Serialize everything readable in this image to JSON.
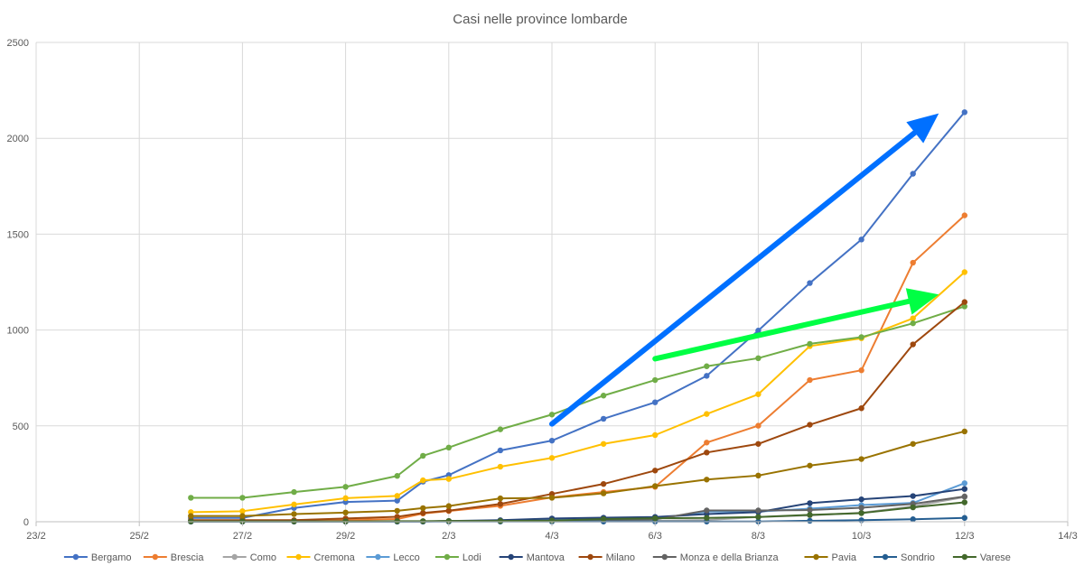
{
  "chart_data": {
    "type": "line",
    "title": "Casi nelle province lombarde",
    "xlabel": "",
    "ylabel": "",
    "xlim": [
      "23/2",
      "14/3"
    ],
    "ylim": [
      0,
      2500
    ],
    "x_ticks": [
      "23/2",
      "25/2",
      "27/2",
      "29/2",
      "2/3",
      "4/3",
      "6/3",
      "8/3",
      "10/3",
      "12/3",
      "14/3"
    ],
    "y_ticks": [
      0,
      500,
      1000,
      1500,
      2000,
      2500
    ],
    "grid": true,
    "legend_position": "bottom",
    "x": [
      "26/2",
      "27/2",
      "28/2",
      "29/2",
      "1/3",
      "2/3",
      "3/3",
      "4/3",
      "5/3",
      "6/3",
      "7/3",
      "8/3",
      "9/3",
      "10/3",
      "11/3",
      "12/3"
    ],
    "x_partial_start": {
      "Brescia": "26/2",
      "Como": "26/2"
    },
    "series": [
      {
        "name": "Bergamo",
        "color": "#4472c4",
        "points": [
          [
            "26/2",
            20
          ],
          [
            "27/2",
            20
          ],
          [
            "28/2",
            72
          ],
          [
            "29/2",
            103
          ],
          [
            "1/3",
            110
          ],
          [
            "1/3T",
            209
          ],
          [
            "2/3",
            243
          ],
          [
            "3/3",
            372
          ],
          [
            "4/3",
            423
          ],
          [
            "5/3",
            537
          ],
          [
            "6/3",
            623
          ],
          [
            "7/3",
            761
          ],
          [
            "8/3",
            997
          ],
          [
            "9/3",
            1245
          ],
          [
            "10/3",
            1472
          ],
          [
            "11/3",
            1815
          ],
          [
            "12/3",
            2136
          ]
        ]
      },
      {
        "name": "Brescia",
        "color": "#ed7d31",
        "points": [
          [
            "26/2",
            2
          ],
          [
            "27/2",
            2
          ],
          [
            "28/2",
            2
          ],
          [
            "29/2",
            10
          ],
          [
            "1/3",
            14
          ],
          [
            "1/3T",
            43
          ],
          [
            "2/3",
            56
          ],
          [
            "3/3",
            83
          ],
          [
            "4/3",
            127
          ],
          [
            "5/3",
            155
          ],
          [
            "6/3",
            182
          ],
          [
            "7/3",
            413
          ],
          [
            "8/3",
            501
          ],
          [
            "9/3",
            739
          ],
          [
            "10/3",
            790
          ],
          [
            "11/3",
            1351
          ],
          [
            "12/3",
            1598
          ]
        ]
      },
      {
        "name": "Como",
        "color": "#a5a5a5",
        "points": [
          [
            "26/2",
            1
          ],
          [
            "27/2",
            1
          ],
          [
            "28/2",
            1
          ],
          [
            "29/2",
            1
          ],
          [
            "1/3",
            1
          ],
          [
            "1/3T",
            2
          ],
          [
            "2/3",
            3
          ],
          [
            "3/3",
            3
          ],
          [
            "4/3",
            3
          ],
          [
            "5/3",
            4
          ],
          [
            "6/3",
            5
          ],
          [
            "7/3",
            9
          ],
          [
            "8/3",
            25
          ],
          [
            "9/3",
            33
          ],
          [
            "10/3",
            47
          ],
          [
            "11/3",
            80
          ],
          [
            "12/3",
            129
          ]
        ]
      },
      {
        "name": "Cremona",
        "color": "#ffc000",
        "points": [
          [
            "26/2",
            50
          ],
          [
            "27/2",
            55
          ],
          [
            "28/2",
            90
          ],
          [
            "29/2",
            123
          ],
          [
            "1/3",
            135
          ],
          [
            "1/3T",
            216
          ],
          [
            "2/3",
            223
          ],
          [
            "3/3",
            287
          ],
          [
            "4/3",
            333
          ],
          [
            "5/3",
            406
          ],
          [
            "6/3",
            452
          ],
          [
            "7/3",
            562
          ],
          [
            "8/3",
            665
          ],
          [
            "9/3",
            916
          ],
          [
            "10/3",
            957
          ],
          [
            "11/3",
            1061
          ],
          [
            "12/3",
            1302
          ]
        ]
      },
      {
        "name": "Lecco",
        "color": "#5b9bd5",
        "points": [
          [
            "26/2",
            1
          ],
          [
            "27/2",
            1
          ],
          [
            "28/2",
            1
          ],
          [
            "29/2",
            1
          ],
          [
            "1/3",
            1
          ],
          [
            "1/3T",
            1
          ],
          [
            "2/3",
            2
          ],
          [
            "3/3",
            6
          ],
          [
            "4/3",
            10
          ],
          [
            "5/3",
            13
          ],
          [
            "6/3",
            14
          ],
          [
            "7/3",
            53
          ],
          [
            "8/3",
            53
          ],
          [
            "9/3",
            68
          ],
          [
            "10/3",
            87
          ],
          [
            "11/3",
            98
          ],
          [
            "12/3",
            201
          ]
        ]
      },
      {
        "name": "Lodi",
        "color": "#70ad47",
        "points": [
          [
            "26/2",
            125
          ],
          [
            "27/2",
            125
          ],
          [
            "28/2",
            155
          ],
          [
            "29/2",
            182
          ],
          [
            "1/3",
            239
          ],
          [
            "1/3T",
            344
          ],
          [
            "2/3",
            387
          ],
          [
            "3/3",
            482
          ],
          [
            "4/3",
            559
          ],
          [
            "5/3",
            658
          ],
          [
            "6/3",
            739
          ],
          [
            "7/3",
            811
          ],
          [
            "8/3",
            853
          ],
          [
            "9/3",
            928
          ],
          [
            "10/3",
            963
          ],
          [
            "11/3",
            1035
          ],
          [
            "12/3",
            1123
          ]
        ]
      },
      {
        "name": "Mantova",
        "color": "#264478",
        "points": [
          [
            "26/2",
            1
          ],
          [
            "27/2",
            1
          ],
          [
            "28/2",
            1
          ],
          [
            "29/2",
            1
          ],
          [
            "1/3",
            1
          ],
          [
            "1/3T",
            1
          ],
          [
            "2/3",
            4
          ],
          [
            "3/3",
            8
          ],
          [
            "4/3",
            17
          ],
          [
            "5/3",
            21
          ],
          [
            "6/3",
            25
          ],
          [
            "7/3",
            40
          ],
          [
            "8/3",
            50
          ],
          [
            "9/3",
            97
          ],
          [
            "10/3",
            117
          ],
          [
            "11/3",
            134
          ],
          [
            "12/3",
            171
          ]
        ]
      },
      {
        "name": "Milano",
        "color": "#9e480e",
        "points": [
          [
            "26/2",
            8
          ],
          [
            "27/2",
            8
          ],
          [
            "28/2",
            8
          ],
          [
            "29/2",
            17
          ],
          [
            "1/3",
            26
          ],
          [
            "1/3T",
            46
          ],
          [
            "2/3",
            58
          ],
          [
            "3/3",
            93
          ],
          [
            "4/3",
            145
          ],
          [
            "5/3",
            197
          ],
          [
            "6/3",
            267
          ],
          [
            "7/3",
            361
          ],
          [
            "8/3",
            406
          ],
          [
            "9/3",
            506
          ],
          [
            "10/3",
            592
          ],
          [
            "11/3",
            925
          ],
          [
            "12/3",
            1146
          ]
        ]
      },
      {
        "name": "Monza e della Brianza",
        "color": "#636363",
        "points": [
          [
            "26/2",
            2
          ],
          [
            "27/2",
            2
          ],
          [
            "28/2",
            2
          ],
          [
            "29/2",
            2
          ],
          [
            "1/3",
            2
          ],
          [
            "1/3T",
            2
          ],
          [
            "2/3",
            3
          ],
          [
            "3/3",
            3
          ],
          [
            "4/3",
            6
          ],
          [
            "5/3",
            9
          ],
          [
            "6/3",
            12
          ],
          [
            "7/3",
            59
          ],
          [
            "8/3",
            59
          ],
          [
            "9/3",
            61
          ],
          [
            "10/3",
            73
          ],
          [
            "11/3",
            93
          ],
          [
            "12/3",
            132
          ]
        ]
      },
      {
        "name": "Pavia",
        "color": "#997300",
        "points": [
          [
            "26/2",
            30
          ],
          [
            "27/2",
            30
          ],
          [
            "28/2",
            40
          ],
          [
            "29/2",
            48
          ],
          [
            "1/3",
            57
          ],
          [
            "1/3T",
            71
          ],
          [
            "2/3",
            82
          ],
          [
            "3/3",
            122
          ],
          [
            "4/3",
            125
          ],
          [
            "5/3",
            148
          ],
          [
            "6/3",
            186
          ],
          [
            "7/3",
            220
          ],
          [
            "8/3",
            241
          ],
          [
            "9/3",
            293
          ],
          [
            "10/3",
            327
          ],
          [
            "11/3",
            406
          ],
          [
            "12/3",
            471
          ]
        ]
      },
      {
        "name": "Sondrio",
        "color": "#255e91",
        "points": [
          [
            "26/2",
            1
          ],
          [
            "27/2",
            1
          ],
          [
            "28/2",
            1
          ],
          [
            "29/2",
            1
          ],
          [
            "1/3",
            1
          ],
          [
            "1/3T",
            1
          ],
          [
            "2/3",
            1
          ],
          [
            "3/3",
            1
          ],
          [
            "4/3",
            1
          ],
          [
            "5/3",
            1
          ],
          [
            "6/3",
            1
          ],
          [
            "7/3",
            1
          ],
          [
            "8/3",
            1
          ],
          [
            "9/3",
            5
          ],
          [
            "10/3",
            8
          ],
          [
            "11/3",
            13
          ],
          [
            "12/3",
            20
          ]
        ]
      },
      {
        "name": "Varese",
        "color": "#43682b",
        "points": [
          [
            "26/2",
            2
          ],
          [
            "27/2",
            2
          ],
          [
            "28/2",
            2
          ],
          [
            "29/2",
            2
          ],
          [
            "1/3",
            3
          ],
          [
            "1/3T",
            3
          ],
          [
            "2/3",
            4
          ],
          [
            "3/3",
            4
          ],
          [
            "4/3",
            6
          ],
          [
            "5/3",
            14
          ],
          [
            "6/3",
            18
          ],
          [
            "7/3",
            20
          ],
          [
            "8/3",
            25
          ],
          [
            "9/3",
            36
          ],
          [
            "10/3",
            45
          ],
          [
            "11/3",
            75
          ],
          [
            "12/3",
            101
          ]
        ]
      }
    ],
    "annotations": [
      {
        "type": "arrow",
        "color": "#0070ff",
        "from": [
          "4/3",
          510
        ],
        "to": [
          "11/3T",
          2130
        ]
      },
      {
        "type": "arrow",
        "color": "#00ff44",
        "from": [
          "6/3",
          850
        ],
        "to": [
          "11/3T",
          1185
        ]
      }
    ]
  }
}
